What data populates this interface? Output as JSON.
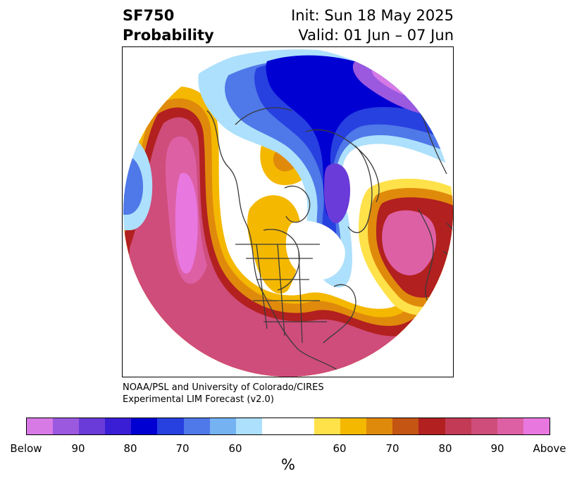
{
  "title": {
    "left_line1": "SF750",
    "left_line2": "Probability",
    "right_line1": "Init: Sun 18 May 2025",
    "right_line2": "Valid: 01 Jun – 07 Jun"
  },
  "credits": {
    "line1": "NOAA/PSL and University of Colorado/CIRES",
    "line2": "Experimental LIM Forecast (v2.0)"
  },
  "colorbar": {
    "unit": "%",
    "tick_labels": [
      "Below",
      "90",
      "80",
      "70",
      "60",
      "60",
      "70",
      "80",
      "90",
      "Above"
    ],
    "colors": [
      "#d77ae6",
      "#9b59e0",
      "#6a3bd8",
      "#3a1ed6",
      "#0000d2",
      "#2740e0",
      "#4f78e8",
      "#74b2f2",
      "#ade0fc",
      "#ffffff",
      "#ffe14a",
      "#f4b800",
      "#e08a0c",
      "#c45512",
      "#b22020",
      "#c23a55",
      "#cf4d7a",
      "#dd60a5",
      "#e878e0"
    ]
  },
  "map": {
    "projection": "north-polar-stereographic",
    "colors": {
      "below_light": "#ade0fc",
      "below_mid": "#4f78e8",
      "below_strong": "#0000d2",
      "below_extreme": "#9b59e0",
      "above_light": "#ffe14a",
      "above_mid": "#f4b800",
      "above_orange": "#e08a0c",
      "above_red": "#b22020",
      "above_pink": "#cf4d7a",
      "above_extreme": "#e878e0"
    }
  }
}
